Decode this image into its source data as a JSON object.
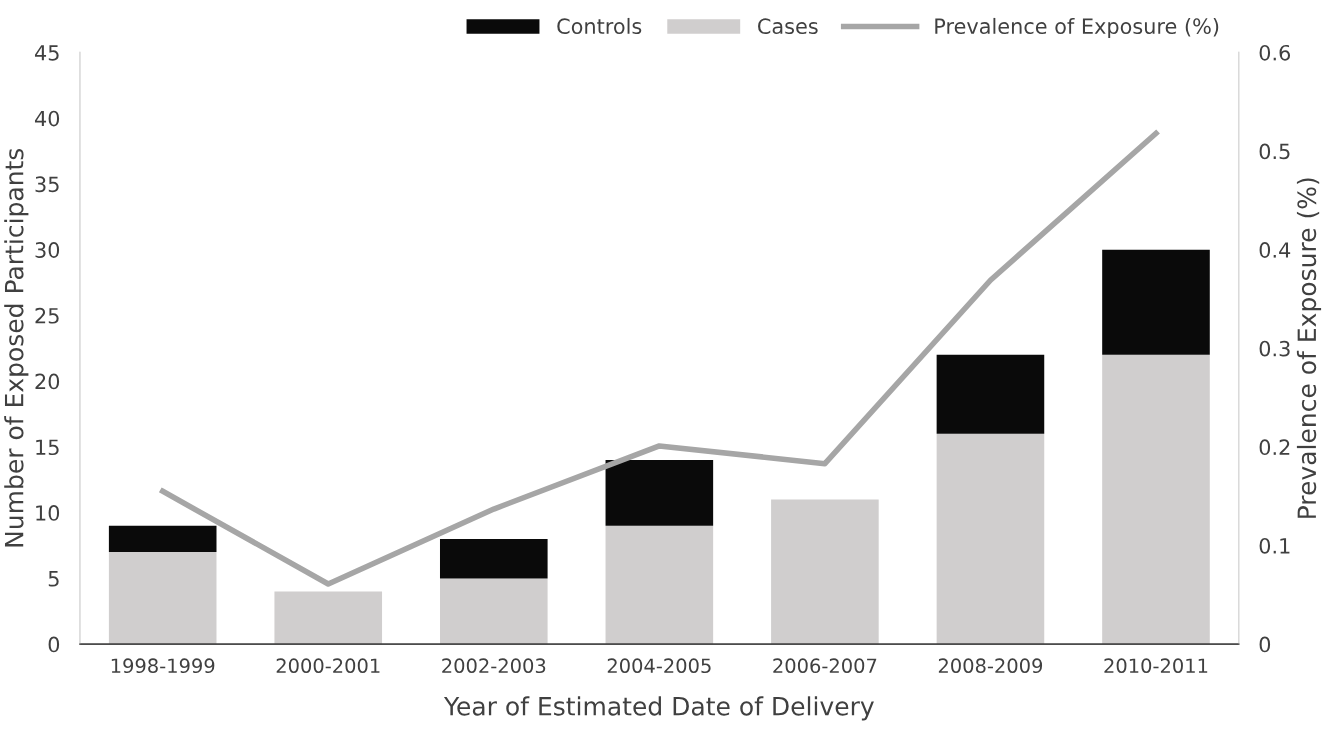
{
  "chart_data": {
    "type": "bar",
    "stacked": true,
    "xlabel": "Year of Estimated Date of Delivery",
    "ylabel": "Number of Exposed Participants",
    "y2label": "Prevalence of Exposure (%)",
    "categories": [
      "1998-1999",
      "2000-2001",
      "2002-2003",
      "2004-2005",
      "2006-2007",
      "2008-2009",
      "2010-2011"
    ],
    "series": [
      {
        "name": "Cases",
        "color": "#d0cece",
        "values": [
          7,
          4,
          5,
          9,
          11,
          16,
          22
        ]
      },
      {
        "name": "Controls",
        "color": "#0a0a0a",
        "values": [
          2,
          0,
          3,
          5,
          0,
          6,
          8
        ]
      },
      {
        "name": "Prevalence of Exposure (%)",
        "type": "line",
        "axis": "y2",
        "color": "#a6a6a6",
        "values": [
          0.155,
          0.061,
          0.137,
          0.201,
          0.183,
          0.369,
          0.518
        ]
      }
    ],
    "ylim": [
      0,
      45
    ],
    "yticks": [
      0,
      5,
      10,
      15,
      20,
      25,
      30,
      35,
      40,
      45
    ],
    "y2lim": [
      0,
      0.6
    ],
    "y2ticks": [
      {
        "value": 0,
        "label": "0"
      },
      0.1,
      0.2,
      0.3,
      0.4,
      0.5,
      0.6
    ],
    "grid": false,
    "legend": "top",
    "marker": "none",
    "line_style": "solid"
  }
}
